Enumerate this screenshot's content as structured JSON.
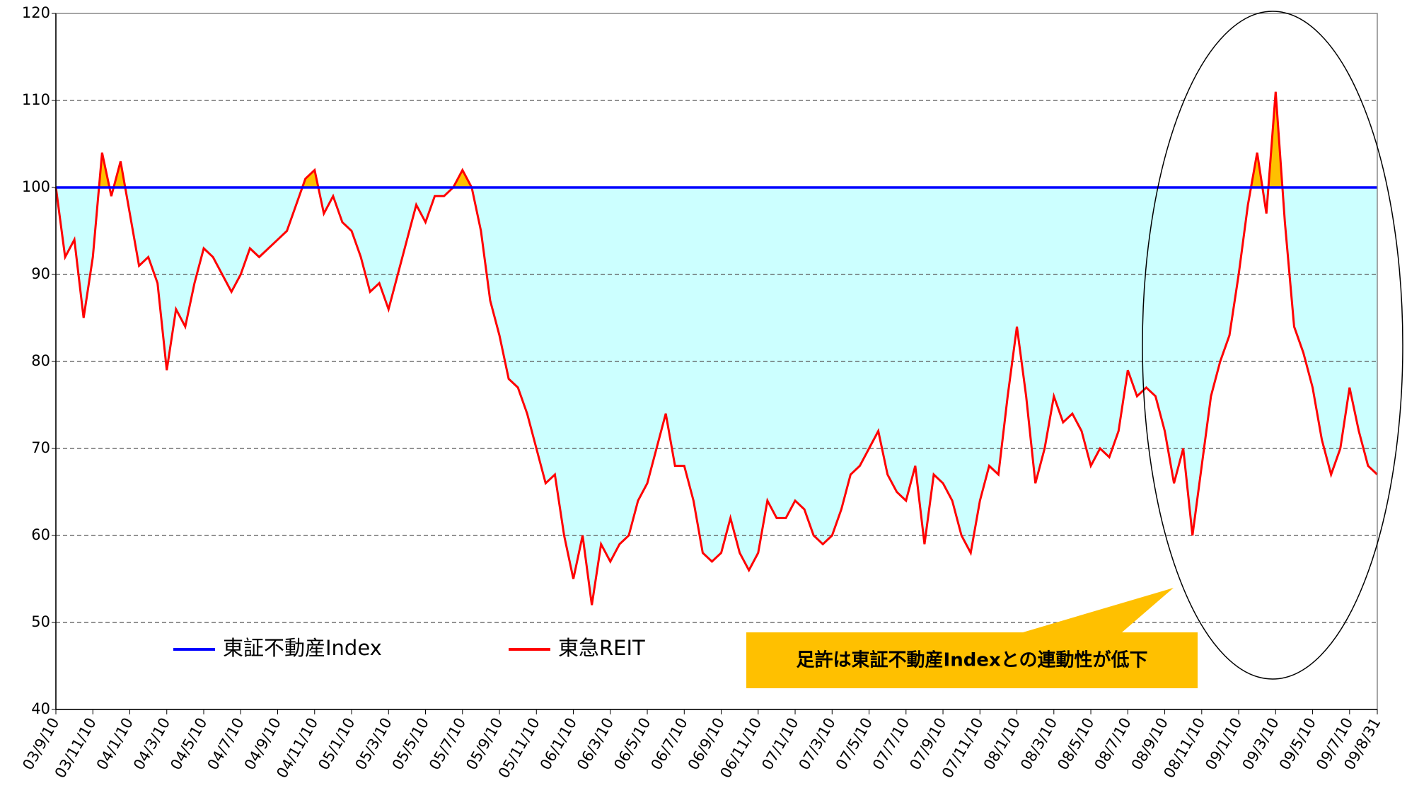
{
  "chart_data": {
    "type": "line",
    "categories": [
      "03/9/10",
      null,
      null,
      null,
      "03/11/10",
      null,
      null,
      null,
      "04/1/10",
      null,
      null,
      null,
      "04/3/10",
      null,
      null,
      null,
      "04/5/10",
      null,
      null,
      null,
      "04/7/10",
      null,
      null,
      null,
      "04/9/10",
      null,
      null,
      null,
      "04/11/10",
      null,
      null,
      null,
      "05/1/10",
      null,
      null,
      null,
      "05/3/10",
      null,
      null,
      null,
      "05/5/10",
      null,
      null,
      null,
      "05/7/10",
      null,
      null,
      null,
      "05/9/10",
      null,
      null,
      null,
      "05/11/10",
      null,
      null,
      null,
      "06/1/10",
      null,
      null,
      null,
      "06/3/10",
      null,
      null,
      null,
      "06/5/10",
      null,
      null,
      null,
      "06/7/10",
      null,
      null,
      null,
      "06/9/10",
      null,
      null,
      null,
      "06/11/10",
      null,
      null,
      null,
      "07/1/10",
      null,
      null,
      null,
      "07/3/10",
      null,
      null,
      null,
      "07/5/10",
      null,
      null,
      null,
      "07/7/10",
      null,
      null,
      null,
      "07/9/10",
      null,
      null,
      null,
      "07/11/10",
      null,
      null,
      null,
      "08/1/10",
      null,
      null,
      null,
      "08/3/10",
      null,
      null,
      null,
      "08/5/10",
      null,
      null,
      null,
      "08/7/10",
      null,
      null,
      null,
      "08/9/10",
      null,
      null,
      null,
      "08/11/10",
      null,
      null,
      null,
      "09/1/10",
      null,
      null,
      null,
      "09/3/10",
      null,
      null,
      null,
      "09/5/10",
      null,
      null,
      null,
      "09/7/10",
      null,
      null,
      "09/8/31"
    ],
    "series": [
      {
        "name": "東証不動産Index",
        "color": "#0000ff",
        "values": [
          100,
          100,
          100,
          100,
          100,
          100,
          100,
          100,
          100,
          100,
          100,
          100,
          100,
          100,
          100,
          100,
          100,
          100,
          100,
          100,
          100,
          100,
          100,
          100,
          100,
          100,
          100,
          100,
          100,
          100,
          100,
          100,
          100,
          100,
          100,
          100,
          100,
          100,
          100,
          100,
          100,
          100,
          100,
          100,
          100,
          100,
          100,
          100,
          100,
          100,
          100,
          100,
          100,
          100,
          100,
          100,
          100,
          100,
          100,
          100,
          100,
          100,
          100,
          100,
          100,
          100,
          100,
          100,
          100,
          100,
          100,
          100,
          100,
          100,
          100,
          100,
          100,
          100,
          100,
          100,
          100,
          100,
          100,
          100,
          100,
          100,
          100,
          100,
          100,
          100,
          100,
          100,
          100,
          100,
          100,
          100,
          100,
          100,
          100,
          100,
          100,
          100,
          100,
          100,
          100,
          100,
          100,
          100,
          100,
          100,
          100,
          100,
          100,
          100,
          100,
          100,
          100,
          100,
          100,
          100,
          100,
          100,
          100,
          100,
          100,
          100,
          100,
          100,
          100,
          100,
          100,
          100,
          100,
          100,
          100,
          100,
          100,
          100,
          100,
          100,
          100,
          100,
          100,
          100
        ]
      },
      {
        "name": "東急REIT",
        "color": "#ff0000",
        "values": [
          100,
          92,
          94,
          85,
          92,
          104,
          99,
          103,
          97,
          91,
          92,
          89,
          79,
          86,
          84,
          89,
          93,
          92,
          90,
          88,
          90,
          93,
          92,
          93,
          94,
          95,
          98,
          101,
          102,
          97,
          99,
          96,
          95,
          92,
          88,
          89,
          86,
          90,
          94,
          98,
          96,
          99,
          99,
          100,
          102,
          100,
          95,
          87,
          83,
          78,
          77,
          74,
          70,
          66,
          67,
          60,
          55,
          60,
          52,
          59,
          57,
          59,
          60,
          64,
          66,
          70,
          74,
          68,
          68,
          64,
          58,
          57,
          58,
          62,
          58,
          56,
          58,
          64,
          62,
          62,
          64,
          63,
          60,
          59,
          60,
          63,
          67,
          68,
          70,
          72,
          67,
          65,
          64,
          68,
          59,
          67,
          66,
          64,
          60,
          58,
          64,
          68,
          67,
          76,
          84,
          76,
          66,
          70,
          76,
          73,
          74,
          72,
          68,
          70,
          69,
          72,
          79,
          76,
          77,
          76,
          72,
          66,
          70,
          60,
          68,
          76,
          80,
          83,
          90,
          98,
          104,
          97,
          111,
          96,
          84,
          81,
          77,
          71,
          67,
          70,
          77,
          72,
          68,
          67
        ]
      }
    ],
    "ylim": [
      40,
      120
    ],
    "yticks": [
      40,
      50,
      60,
      70,
      80,
      90,
      100,
      110,
      120
    ],
    "grid": true,
    "annotation": "足許は東証不動産Indexとの連動性が低下"
  }
}
